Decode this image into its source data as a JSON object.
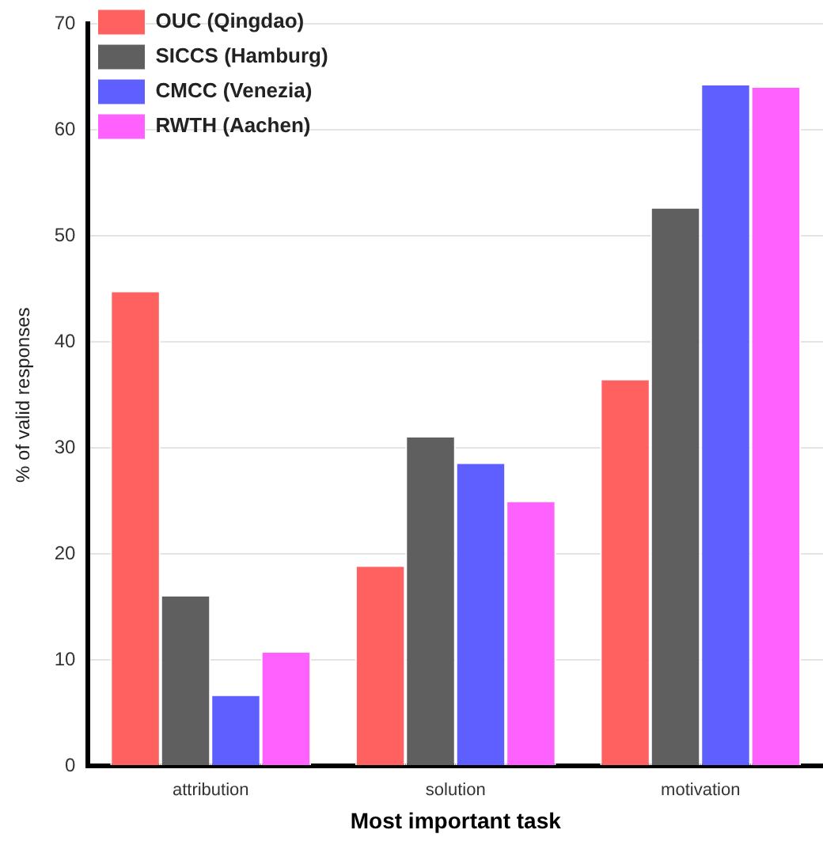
{
  "chart_data": {
    "type": "bar",
    "xlabel": "Most important task",
    "ylabel": "% of valid responses",
    "categories": [
      "attribution",
      "solution",
      "motivation"
    ],
    "series": [
      {
        "name": "OUC (Qingdao)",
        "color": "#ff6161",
        "values": [
          44.7,
          18.8,
          36.4
        ]
      },
      {
        "name": "SICCS (Hamburg)",
        "color": "#5f5f5f",
        "values": [
          16.0,
          31.0,
          52.6
        ]
      },
      {
        "name": "CMCC (Venezia)",
        "color": "#5f5fff",
        "values": [
          6.6,
          28.5,
          64.2
        ]
      },
      {
        "name": "RWTH (Aachen)",
        "color": "#ff61ff",
        "values": [
          10.7,
          24.9,
          64.0
        ]
      }
    ],
    "ylim": [
      0,
      70
    ],
    "yticks": [
      0,
      10,
      20,
      30,
      40,
      50,
      60,
      70
    ],
    "grid": "y",
    "legend": "top left"
  }
}
